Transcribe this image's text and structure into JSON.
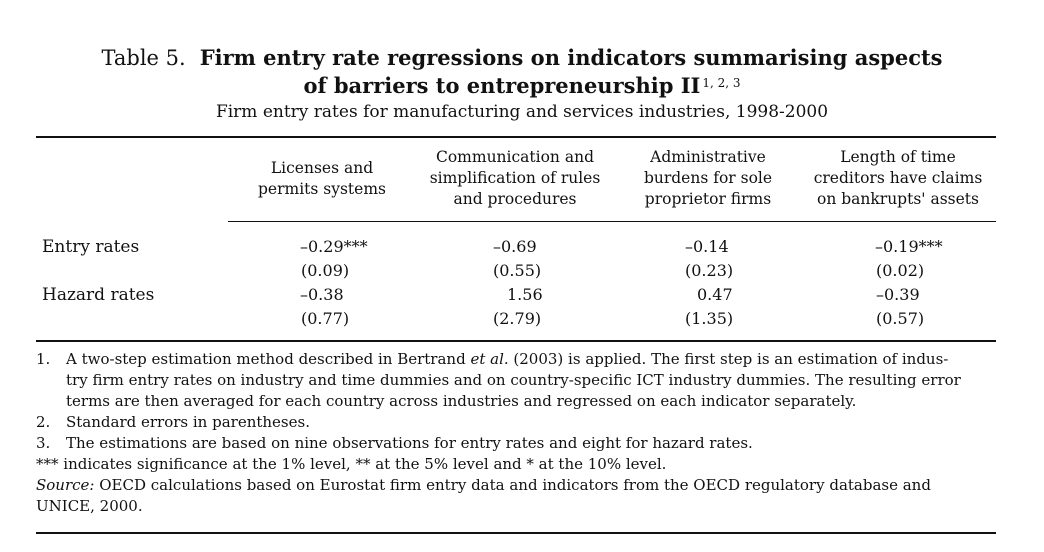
{
  "title": {
    "prefix": "Table 5.",
    "line1": "Firm entry rate regressions on indicators summarising aspects",
    "line2": "of barriers to entrepreneurship II",
    "sup": "1, 2, 3",
    "subtitle": "Firm entry rates for manufacturing and services industries, 1998-2000"
  },
  "columns": [
    {
      "l1": "Licenses and",
      "l2": "permits systems",
      "l3": ""
    },
    {
      "l1": "Communication and",
      "l2": "simplification of rules",
      "l3": "and procedures"
    },
    {
      "l1": "Administrative",
      "l2": "burdens for sole",
      "l3": "proprietor firms"
    },
    {
      "l1": "Length of time",
      "l2": "creditors have claims",
      "l3": "on bankrupts' assets"
    }
  ],
  "rows": [
    {
      "label": "Entry rates",
      "coef": [
        "–0.29***",
        "–0.69",
        "–0.14",
        "–0.19***"
      ],
      "se": [
        "(0.09)",
        "(0.55)",
        "(0.23)",
        "(0.02)"
      ]
    },
    {
      "label": "Hazard rates",
      "coef": [
        "–0.38",
        "1.56",
        "0.47",
        "–0.39"
      ],
      "se": [
        "(0.77)",
        "(2.79)",
        "(1.35)",
        "(0.57)"
      ]
    }
  ],
  "notes": {
    "n1_num": "1.",
    "n1_a": "A two-step estimation method described in Bertrand ",
    "n1_etal": "et al.",
    "n1_b": " (2003) is applied. The first step is an estimation of indus-",
    "n1_l2": "try firm entry rates on industry and time dummies and on country-specific ICT industry dummies. The resulting error",
    "n1_l3": "terms are then averaged for each country across industries and regressed on each indicator separately.",
    "n2_num": "2.",
    "n2": "Standard errors in parentheses.",
    "n3_num": "3.",
    "n3": "The estimations are based on nine observations for entry rates and eight for hazard rates.",
    "sig": "*** indicates significance at the 1% level, ** at the 5% level and * at the 10% level.",
    "source_label": "Source:",
    "source_l1": " OECD calculations based on Eurostat firm entry data and indicators from the OECD regulatory database and",
    "source_l2": "UNICE, 2000."
  }
}
